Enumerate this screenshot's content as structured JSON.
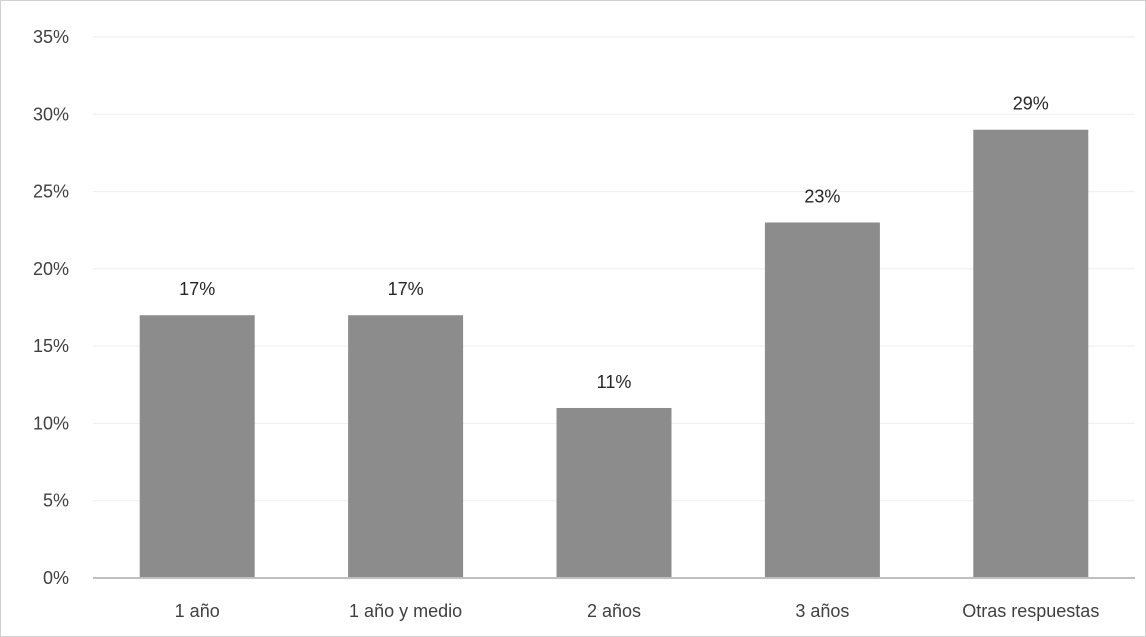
{
  "chart_data": {
    "type": "bar",
    "title": "",
    "xlabel": "",
    "ylabel": "",
    "categories": [
      "1 año",
      "1 año y medio",
      "2 años",
      "3 años",
      "Otras respuestas"
    ],
    "values": [
      17,
      17,
      11,
      23,
      29
    ],
    "data_labels": [
      "17%",
      "17%",
      "11%",
      "23%",
      "29%"
    ],
    "y_ticks": [
      0,
      5,
      10,
      15,
      20,
      25,
      30,
      35
    ],
    "y_tick_labels": [
      "0%",
      "5%",
      "10%",
      "15%",
      "20%",
      "25%",
      "30%",
      "35%"
    ],
    "ylim": [
      0,
      35
    ],
    "grid": true,
    "legend": "none",
    "colors": {
      "bar": "#8c8c8c",
      "grid": "#eeeeee",
      "axis": "#bfbfbf",
      "text": "#404040"
    }
  }
}
